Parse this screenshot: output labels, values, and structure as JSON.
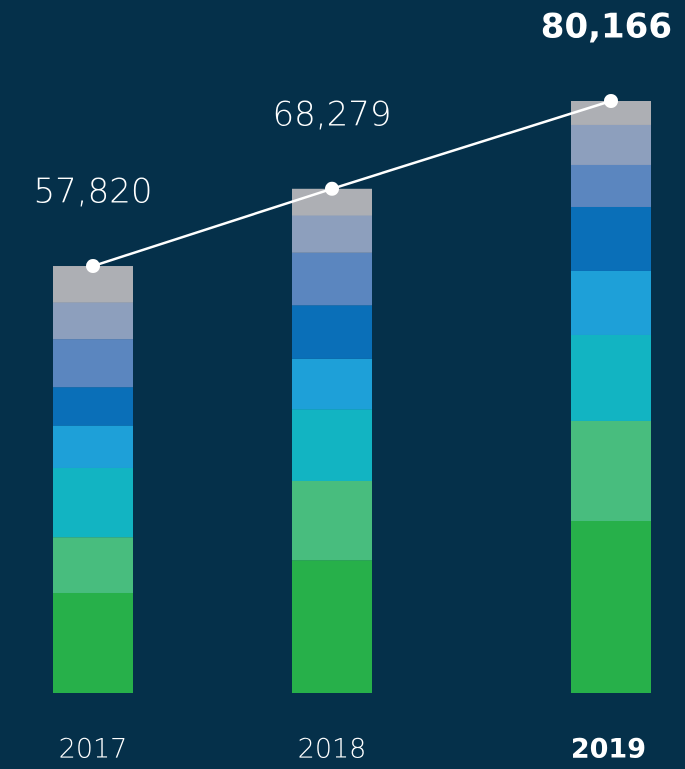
{
  "chart_data": {
    "type": "stacked_bar_line",
    "categories": [
      "2017",
      "2018",
      "2019"
    ],
    "series": [
      {
        "color": "#27b04a",
        "values": [
          13543,
          17975,
          23292
        ]
      },
      {
        "color": "#48bd7e",
        "values": [
          7552,
          10733,
          13542
        ]
      },
      {
        "color": "#12b4c2",
        "values": [
          9376,
          9699,
          11646
        ]
      },
      {
        "color": "#1ea0d8",
        "values": [
          5730,
          6854,
          8667
        ]
      },
      {
        "color": "#0a6fb8",
        "values": [
          5209,
          7242,
          8667
        ]
      },
      {
        "color": "#5b86bf",
        "values": [
          6511,
          7113,
          5688
        ]
      },
      {
        "color": "#8d9fbd",
        "values": [
          4948,
          5043,
          5417
        ]
      },
      {
        "color": "#adafb4",
        "values": [
          4951,
          3620,
          3247
        ]
      }
    ],
    "totals": [
      57820,
      68279,
      80166
    ],
    "value_labels": [
      "57,820",
      "68,279",
      "80,166"
    ],
    "line_color": "#ffffff"
  }
}
